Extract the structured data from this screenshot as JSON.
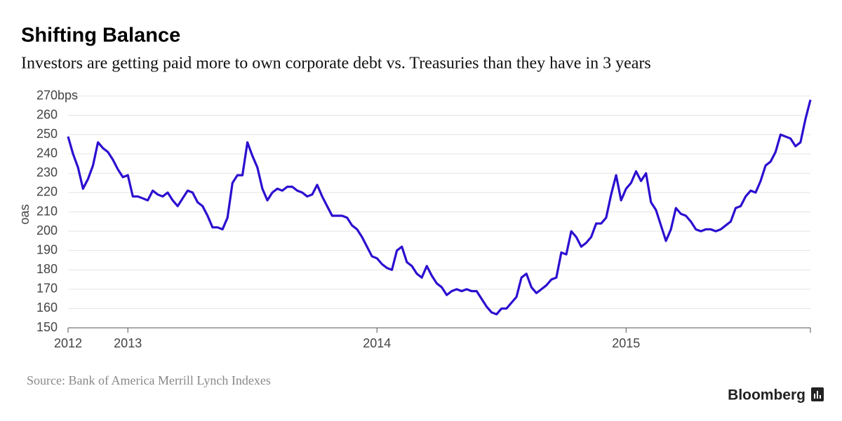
{
  "chart_data": {
    "type": "line",
    "title": "Shifting Balance",
    "subtitle": "Investors are getting paid more to own corporate debt vs. Treasuries than they have in 3 years",
    "ylabel": "oas",
    "source": "Source: Bank of America Merrill Lynch Indexes",
    "brand": "Bloomberg",
    "xlim": [
      2012.76,
      2015.74
    ],
    "xticks": [
      {
        "value": 2012.76,
        "label": "2012"
      },
      2013,
      2014,
      2015
    ],
    "ylim": [
      150,
      270
    ],
    "yticks": [
      150,
      160,
      170,
      180,
      190,
      200,
      210,
      220,
      230,
      240,
      250,
      260,
      {
        "value": 270,
        "label": "270bps"
      }
    ],
    "grid": true,
    "x": [
      2012.76,
      2012.78,
      2012.8,
      2012.82,
      2012.84,
      2012.86,
      2012.88,
      2012.9,
      2012.92,
      2012.94,
      2012.96,
      2012.98,
      2013.0,
      2013.02,
      2013.04,
      2013.06,
      2013.08,
      2013.1,
      2013.12,
      2013.14,
      2013.16,
      2013.18,
      2013.2,
      2013.22,
      2013.24,
      2013.26,
      2013.28,
      2013.3,
      2013.32,
      2013.34,
      2013.36,
      2013.38,
      2013.4,
      2013.42,
      2013.44,
      2013.46,
      2013.48,
      2013.5,
      2013.52,
      2013.54,
      2013.56,
      2013.58,
      2013.6,
      2013.62,
      2013.64,
      2013.66,
      2013.68,
      2013.7,
      2013.72,
      2013.74,
      2013.76,
      2013.78,
      2013.8,
      2013.82,
      2013.84,
      2013.86,
      2013.88,
      2013.9,
      2013.92,
      2013.94,
      2013.96,
      2013.98,
      2014.0,
      2014.02,
      2014.04,
      2014.06,
      2014.08,
      2014.1,
      2014.12,
      2014.14,
      2014.16,
      2014.18,
      2014.2,
      2014.22,
      2014.24,
      2014.26,
      2014.28,
      2014.3,
      2014.32,
      2014.34,
      2014.36,
      2014.38,
      2014.4,
      2014.42,
      2014.44,
      2014.46,
      2014.48,
      2014.5,
      2014.52,
      2014.54,
      2014.56,
      2014.58,
      2014.6,
      2014.62,
      2014.64,
      2014.66,
      2014.68,
      2014.7,
      2014.72,
      2014.74,
      2014.76,
      2014.78,
      2014.8,
      2014.82,
      2014.84,
      2014.86,
      2014.88,
      2014.9,
      2014.92,
      2014.94,
      2014.96,
      2014.98,
      2015.0,
      2015.02,
      2015.04,
      2015.06,
      2015.08,
      2015.1,
      2015.12,
      2015.14,
      2015.16,
      2015.18,
      2015.2,
      2015.22,
      2015.24,
      2015.26,
      2015.28,
      2015.3,
      2015.32,
      2015.34,
      2015.36,
      2015.38,
      2015.4,
      2015.42,
      2015.44,
      2015.46,
      2015.48,
      2015.5,
      2015.52,
      2015.54,
      2015.56,
      2015.58,
      2015.6,
      2015.62,
      2015.64,
      2015.66,
      2015.68,
      2015.7,
      2015.72,
      2015.74
    ],
    "series": [
      {
        "color": "#2b0fd0",
        "values": [
          249,
          240,
          233,
          222,
          227,
          234,
          246,
          243,
          241,
          237,
          232,
          228,
          229,
          218,
          218,
          217,
          216,
          221,
          219,
          218,
          220,
          216,
          213,
          217,
          221,
          220,
          215,
          213,
          208,
          202,
          202,
          201,
          207,
          225,
          229,
          229,
          246,
          239,
          233,
          222,
          216,
          220,
          222,
          221,
          223,
          223,
          221,
          220,
          218,
          219,
          224,
          218,
          213,
          208,
          208,
          208,
          207,
          203,
          201,
          197,
          192,
          187,
          186,
          183,
          181,
          180,
          190,
          192,
          184,
          182,
          178,
          176,
          182,
          177,
          173,
          171,
          167,
          169,
          170,
          169,
          170,
          169,
          169,
          165,
          161,
          158,
          157,
          160,
          160,
          163,
          166,
          176,
          178,
          171,
          168,
          170,
          172,
          175,
          176,
          189,
          188,
          200,
          197,
          192,
          194,
          197,
          204,
          204,
          207,
          219,
          229,
          216,
          222,
          225,
          231,
          226,
          230,
          215,
          211,
          203,
          195,
          201,
          212,
          209,
          208,
          205,
          201,
          200,
          201,
          201,
          200,
          201,
          203,
          205,
          212,
          213,
          218,
          221,
          220,
          226,
          234,
          236,
          241,
          250,
          249,
          248,
          244,
          246,
          258,
          268
        ]
      }
    ]
  }
}
